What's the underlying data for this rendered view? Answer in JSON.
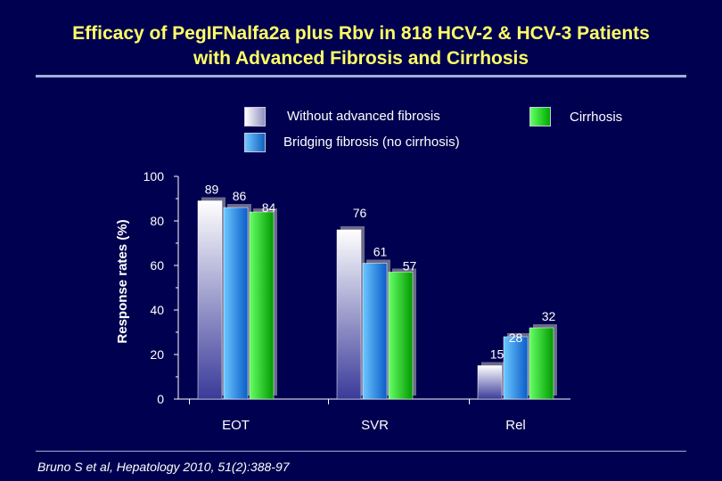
{
  "title_line1": "Efficacy of PegIFNalfa2a plus Rbv in 818 HCV-2 & HCV-3 Patients",
  "title_line2": "with Advanced Fibrosis and Cirrhosis",
  "legend": [
    {
      "label": "Without advanced fibrosis",
      "color": "#d8d8ec"
    },
    {
      "label": "Bridging fibrosis (no cirrhosis)",
      "color": "#2f8fe8"
    },
    {
      "label": "Cirrhosis",
      "color": "#22cc22"
    }
  ],
  "citation": "Bruno S et al, Hepatology 2010, 51(2):388-97",
  "chart_data": {
    "type": "bar",
    "title": "Efficacy of PegIFNalfa2a plus Rbv in 818 HCV-2 & HCV-3 Patients with Advanced Fibrosis and Cirrhosis",
    "xlabel": "",
    "ylabel": "Response rates (%)",
    "ylim": [
      0,
      100
    ],
    "yticks": [
      "0",
      "20",
      "40",
      "60",
      "80",
      "100"
    ],
    "categories": [
      "EOT",
      "SVR",
      "Rel"
    ],
    "series": [
      {
        "name": "Without advanced fibrosis",
        "values": [
          89,
          76,
          15
        ],
        "labels": [
          "89",
          "76",
          "15"
        ]
      },
      {
        "name": "Bridging fibrosis (no cirrhosis)",
        "values": [
          86,
          61,
          28
        ],
        "labels": [
          "86",
          "61",
          "28"
        ]
      },
      {
        "name": "Cirrhosis",
        "values": [
          84,
          57,
          32
        ],
        "labels": [
          "84",
          "57",
          "32"
        ]
      }
    ]
  }
}
